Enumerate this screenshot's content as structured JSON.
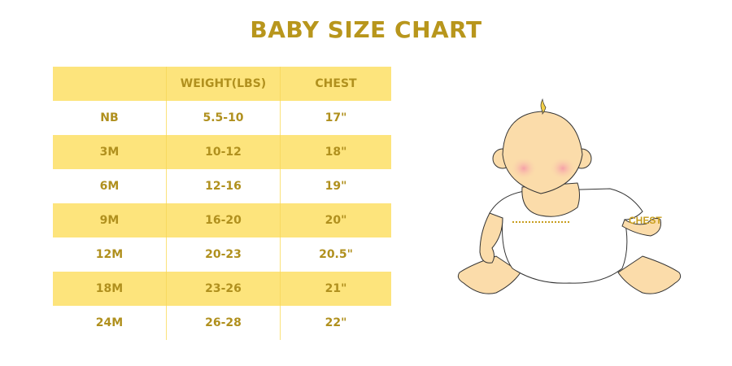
{
  "title": "BABY SIZE CHART",
  "table": {
    "headers": [
      "",
      "WEIGHT(LBS)",
      "CHEST"
    ],
    "rows": [
      [
        "NB",
        "5.5-10",
        "17\""
      ],
      [
        "3M",
        "10-12",
        "18\""
      ],
      [
        "6M",
        "12-16",
        "19\""
      ],
      [
        "9M",
        "16-20",
        "20\""
      ],
      [
        "12M",
        "20-23",
        "20.5\""
      ],
      [
        "18M",
        "23-26",
        "21\""
      ],
      [
        "24M",
        "26-28",
        "22\""
      ]
    ]
  },
  "illustration": {
    "chest_label": "CHEST"
  },
  "colors": {
    "accent": "#b8961c",
    "band": "#fde47c"
  }
}
